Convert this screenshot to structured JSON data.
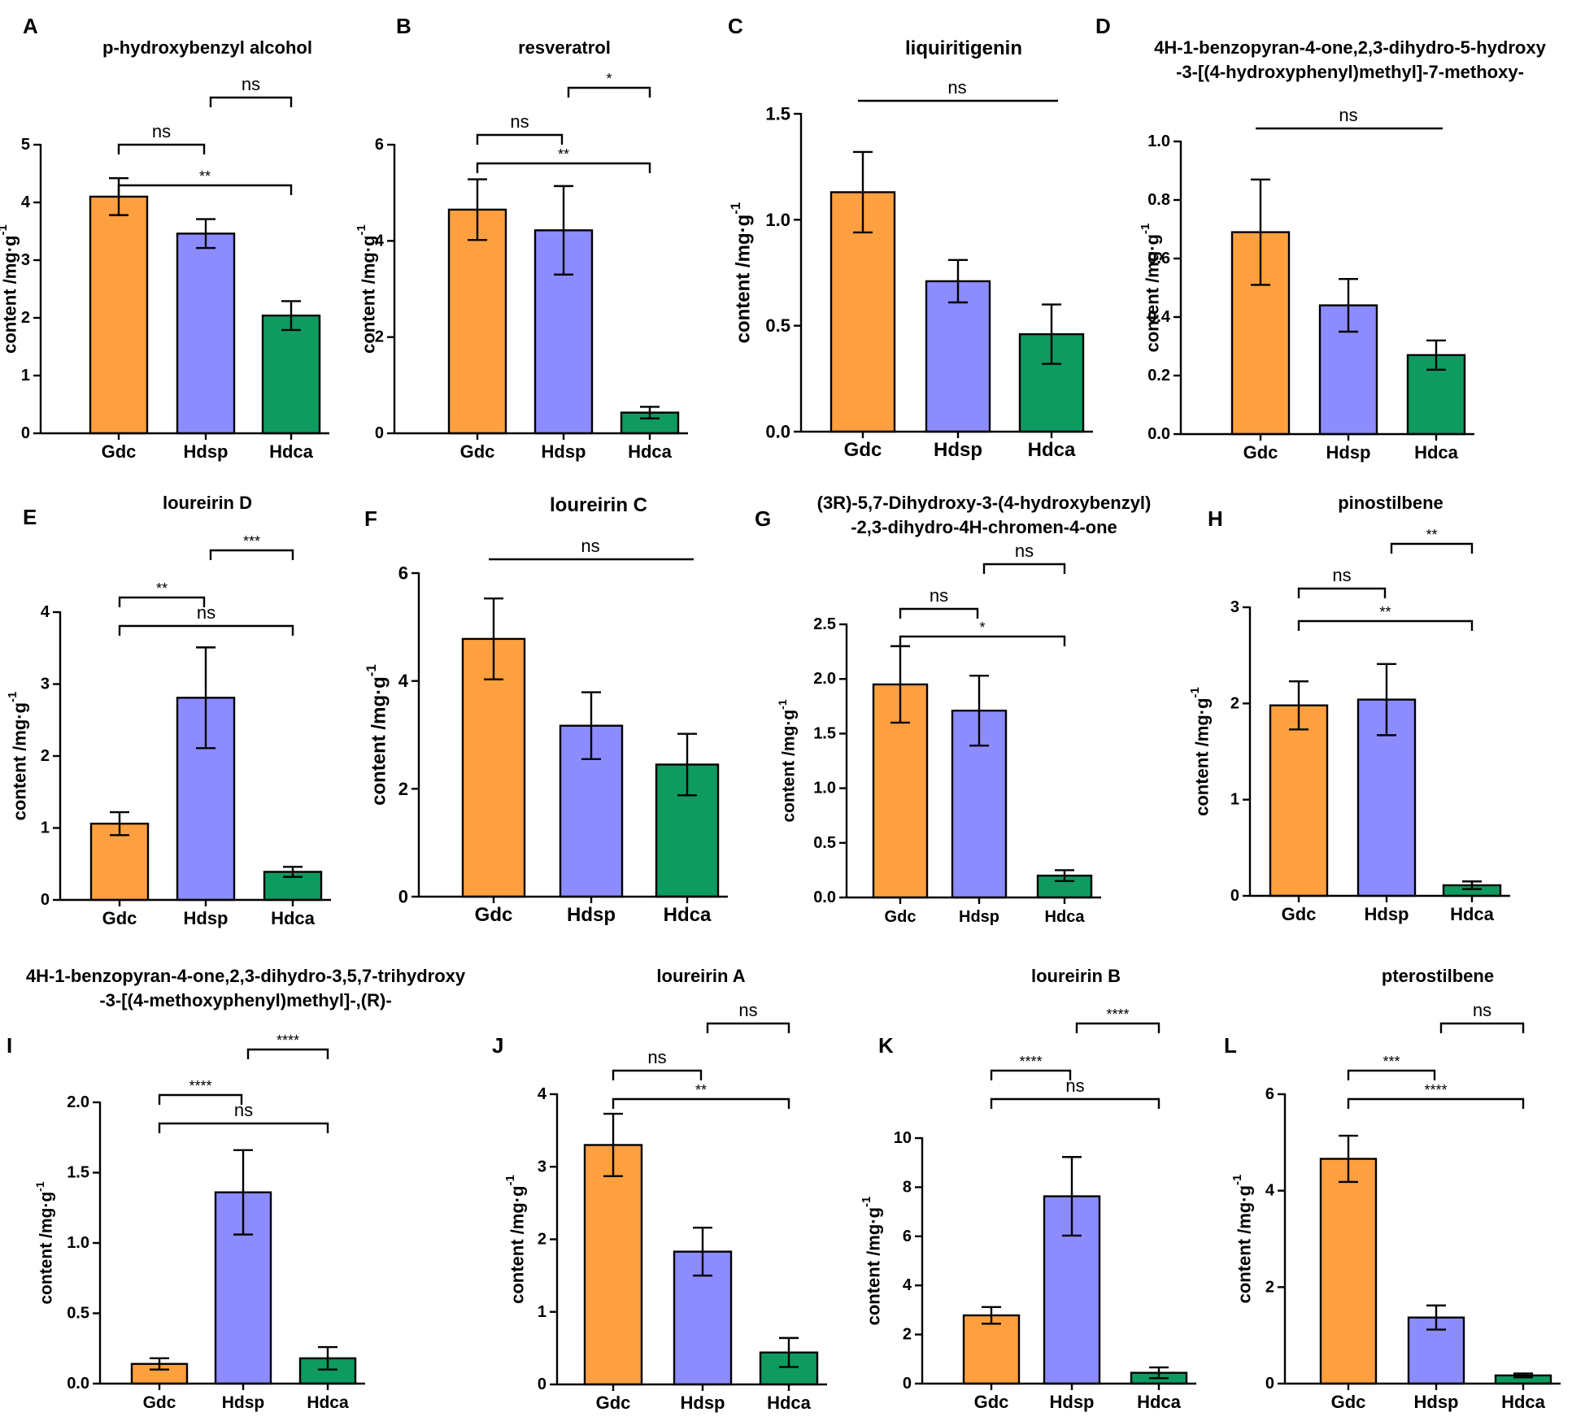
{
  "colors": {
    "Gdc": "#FFA040",
    "Hdsp": "#8C8CFF",
    "Hdca": "#0F9A60",
    "ink": "#000000"
  },
  "ylabel": "content /mg·g",
  "ylabel_superscript": "-1",
  "chart_data": [
    {
      "panel": "A",
      "type": "bar",
      "title": [
        "p-hydroxybenzyl alcohol"
      ],
      "categories": [
        "Gdc",
        "Hdsp",
        "Hdca"
      ],
      "values": [
        4.1,
        3.46,
        2.04
      ],
      "errors": [
        0.32,
        0.25,
        0.25
      ],
      "ylim": [
        0,
        5
      ],
      "yticks": [
        0,
        1,
        2,
        3,
        4,
        5
      ],
      "tick_decimals": 0,
      "brackets": [
        {
          "from": 0,
          "to": 2,
          "label": "**",
          "level": 2
        },
        {
          "from": 0,
          "to": 1,
          "label": "ns",
          "level": 1
        },
        {
          "from": 1,
          "to": 2,
          "label": "ns",
          "level": 0
        }
      ]
    },
    {
      "panel": "B",
      "type": "bar",
      "title": [
        "resveratrol"
      ],
      "categories": [
        "Gdc",
        "Hdsp",
        "Hdca"
      ],
      "values": [
        4.65,
        4.22,
        0.43
      ],
      "errors": [
        0.63,
        0.92,
        0.12
      ],
      "ylim": [
        0,
        6
      ],
      "yticks": [
        0,
        2,
        4,
        6
      ],
      "tick_decimals": 0,
      "brackets": [
        {
          "from": 0,
          "to": 2,
          "label": "**",
          "level": 2
        },
        {
          "from": 0,
          "to": 1,
          "label": "ns",
          "level": 1
        },
        {
          "from": 1,
          "to": 2,
          "label": "*",
          "level": 0
        }
      ]
    },
    {
      "panel": "C",
      "type": "bar",
      "title": [
        "liquiritigenin"
      ],
      "categories": [
        "Gdc",
        "Hdsp",
        "Hdca"
      ],
      "values": [
        1.13,
        0.71,
        0.46
      ],
      "errors": [
        0.19,
        0.1,
        0.14
      ],
      "ylim": [
        0,
        1.5
      ],
      "yticks": [
        0,
        0.5,
        1.0,
        1.5
      ],
      "tick_decimals": 1,
      "brackets": [
        {
          "from": 0,
          "to": 2,
          "label": "ns",
          "level": 0,
          "line_only": true
        }
      ]
    },
    {
      "panel": "D",
      "type": "bar",
      "title": [
        "4H-1-benzopyran-4-one,2,3-dihydro-5-hydroxy",
        "-3-[(4-hydroxyphenyl)methyl]-7-methoxy-"
      ],
      "categories": [
        "Gdc",
        "Hdsp",
        "Hdca"
      ],
      "values": [
        0.69,
        0.44,
        0.27
      ],
      "errors": [
        0.18,
        0.09,
        0.05
      ],
      "ylim": [
        0,
        1.0
      ],
      "yticks": [
        0,
        0.2,
        0.4,
        0.6,
        0.8,
        1.0
      ],
      "tick_decimals": 1,
      "brackets": [
        {
          "from": 0,
          "to": 2,
          "label": "ns",
          "level": 0,
          "line_only": true
        }
      ]
    },
    {
      "panel": "E",
      "type": "bar",
      "title": [
        "loureirin D"
      ],
      "categories": [
        "Gdc",
        "Hdsp",
        "Hdca"
      ],
      "values": [
        1.06,
        2.81,
        0.39
      ],
      "errors": [
        0.16,
        0.7,
        0.07
      ],
      "ylim": [
        0,
        4
      ],
      "yticks": [
        0,
        1,
        2,
        3,
        4
      ],
      "tick_decimals": 0,
      "brackets": [
        {
          "from": 0,
          "to": 2,
          "label": "ns",
          "level": 2
        },
        {
          "from": 0,
          "to": 1,
          "label": "**",
          "level": 1
        },
        {
          "from": 1,
          "to": 2,
          "label": "***",
          "level": 0
        }
      ]
    },
    {
      "panel": "F",
      "type": "bar",
      "title": [
        "loureirin C"
      ],
      "categories": [
        "Gdc",
        "Hdsp",
        "Hdca"
      ],
      "values": [
        4.78,
        3.17,
        2.45
      ],
      "errors": [
        0.75,
        0.62,
        0.57
      ],
      "ylim": [
        0,
        6
      ],
      "yticks": [
        0,
        2,
        4,
        6
      ],
      "tick_decimals": 0,
      "brackets": [
        {
          "from": 0,
          "to": 2,
          "label": "ns",
          "level": 0,
          "line_only": true
        }
      ]
    },
    {
      "panel": "G",
      "type": "bar",
      "title": [
        "(3R)-5,7-Dihydroxy-3-(4-hydroxybenzyl)",
        "-2,3-dihydro-4H-chromen-4-one"
      ],
      "categories": [
        "Gdc",
        "Hdsp",
        "Hdca"
      ],
      "values": [
        1.95,
        1.71,
        0.2
      ],
      "errors": [
        0.35,
        0.32,
        0.05
      ],
      "ylim": [
        0,
        2.5
      ],
      "yticks": [
        0,
        0.5,
        1.0,
        1.5,
        2.0,
        2.5
      ],
      "tick_decimals": 1,
      "brackets": [
        {
          "from": 0,
          "to": 2,
          "label": "*",
          "level": 2
        },
        {
          "from": 0,
          "to": 1,
          "label": "ns",
          "level": 1
        },
        {
          "from": 1,
          "to": 2,
          "label": "ns",
          "level": 0
        }
      ]
    },
    {
      "panel": "H",
      "type": "bar",
      "title": [
        "pinostilbene"
      ],
      "categories": [
        "Gdc",
        "Hdsp",
        "Hdca"
      ],
      "values": [
        1.98,
        2.04,
        0.11
      ],
      "errors": [
        0.25,
        0.37,
        0.04
      ],
      "ylim": [
        0,
        3
      ],
      "yticks": [
        0,
        1,
        2,
        3
      ],
      "tick_decimals": 0,
      "brackets": [
        {
          "from": 0,
          "to": 2,
          "label": "**",
          "level": 2
        },
        {
          "from": 0,
          "to": 1,
          "label": "ns",
          "level": 1
        },
        {
          "from": 1,
          "to": 2,
          "label": "**",
          "level": 0
        }
      ]
    },
    {
      "panel": "I",
      "type": "bar",
      "title": [
        "4H-1-benzopyran-4-one,2,3-dihydro-3,5,7-trihydroxy",
        "-3-[(4-methoxyphenyl)methyl]-,(R)-"
      ],
      "categories": [
        "Gdc",
        "Hdsp",
        "Hdca"
      ],
      "values": [
        0.14,
        1.36,
        0.18
      ],
      "errors": [
        0.04,
        0.3,
        0.08
      ],
      "ylim": [
        0,
        2.0
      ],
      "yticks": [
        0,
        0.5,
        1.0,
        1.5,
        2.0
      ],
      "tick_decimals": 1,
      "brackets": [
        {
          "from": 0,
          "to": 2,
          "label": "ns",
          "level": 2
        },
        {
          "from": 0,
          "to": 1,
          "label": "****",
          "level": 1
        },
        {
          "from": 1,
          "to": 2,
          "label": "****",
          "level": 0
        }
      ]
    },
    {
      "panel": "J",
      "type": "bar",
      "title": [
        "loureirin A"
      ],
      "categories": [
        "Gdc",
        "Hdsp",
        "Hdca"
      ],
      "values": [
        3.3,
        1.83,
        0.44
      ],
      "errors": [
        0.43,
        0.33,
        0.2
      ],
      "ylim": [
        0,
        4
      ],
      "yticks": [
        0,
        1,
        2,
        3,
        4
      ],
      "tick_decimals": 0,
      "brackets": [
        {
          "from": 0,
          "to": 2,
          "label": "**",
          "level": 2
        },
        {
          "from": 0,
          "to": 1,
          "label": "ns",
          "level": 1
        },
        {
          "from": 1,
          "to": 2,
          "label": "ns",
          "level": 0
        }
      ]
    },
    {
      "panel": "K",
      "type": "bar",
      "title": [
        "loureirin B"
      ],
      "categories": [
        "Gdc",
        "Hdsp",
        "Hdca"
      ],
      "values": [
        2.78,
        7.63,
        0.44
      ],
      "errors": [
        0.34,
        1.6,
        0.22
      ],
      "ylim": [
        0,
        10
      ],
      "yticks": [
        0,
        2,
        4,
        6,
        8,
        10
      ],
      "tick_decimals": 0,
      "brackets": [
        {
          "from": 0,
          "to": 2,
          "label": "ns",
          "level": 2
        },
        {
          "from": 0,
          "to": 1,
          "label": "****",
          "level": 1
        },
        {
          "from": 1,
          "to": 2,
          "label": "****",
          "level": 0
        }
      ]
    },
    {
      "panel": "L",
      "type": "bar",
      "title": [
        "pterostilbene"
      ],
      "categories": [
        "Gdc",
        "Hdsp",
        "Hdca"
      ],
      "values": [
        4.66,
        1.37,
        0.17
      ],
      "errors": [
        0.48,
        0.25,
        0.04
      ],
      "ylim": [
        0,
        6
      ],
      "yticks": [
        0,
        2,
        4,
        6
      ],
      "tick_decimals": 0,
      "brackets": [
        {
          "from": 0,
          "to": 2,
          "label": "****",
          "level": 2
        },
        {
          "from": 0,
          "to": 1,
          "label": "***",
          "level": 1
        },
        {
          "from": 1,
          "to": 2,
          "label": "ns",
          "level": 0
        }
      ]
    }
  ]
}
